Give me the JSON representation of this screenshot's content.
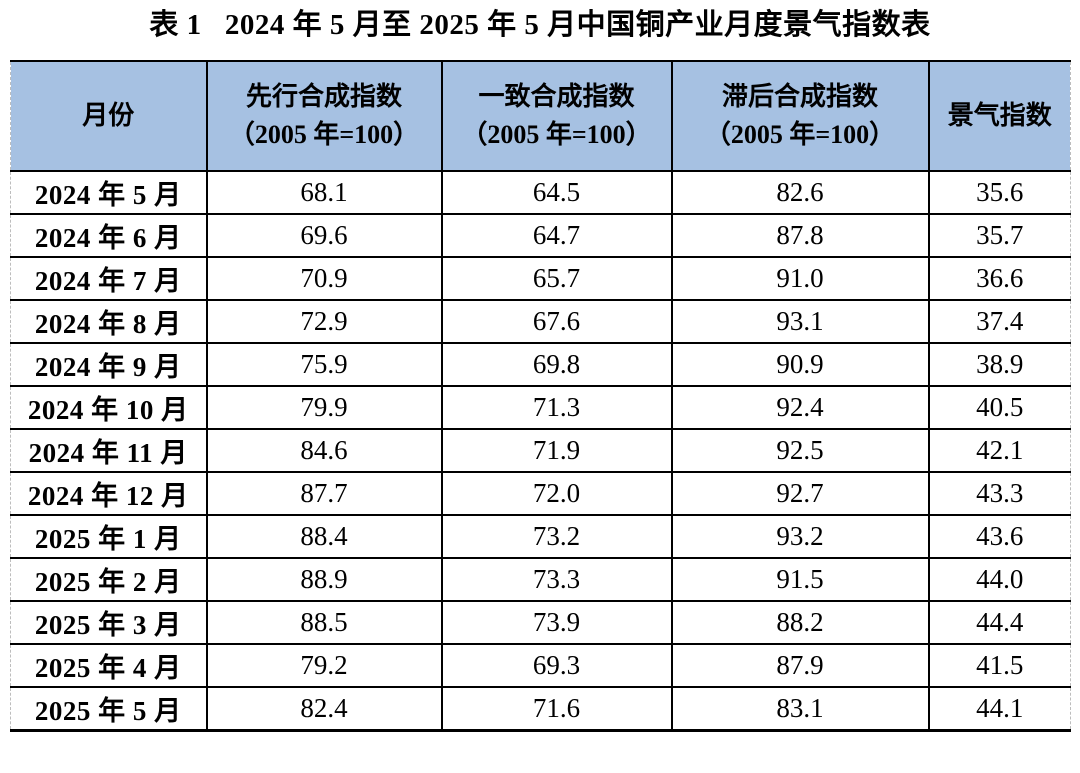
{
  "title": "表 1   2024 年 5 月至 2025 年 5 月中国铜产业月度景气指数表",
  "table": {
    "header_bg": "#a6c1e2",
    "columns": [
      {
        "label": "月份",
        "sublabel": ""
      },
      {
        "label": "先行合成指数",
        "sublabel": "（2005 年=100）"
      },
      {
        "label": "一致合成指数",
        "sublabel": "（2005 年=100）"
      },
      {
        "label": "滞后合成指数",
        "sublabel": "（2005 年=100）"
      },
      {
        "label": "景气指数",
        "sublabel": ""
      }
    ],
    "rows": [
      {
        "month": "2024 年 5 月",
        "leading": "68.1",
        "coincident": "64.5",
        "lagging": "82.6",
        "prosperity": "35.6"
      },
      {
        "month": "2024 年 6 月",
        "leading": "69.6",
        "coincident": "64.7",
        "lagging": "87.8",
        "prosperity": "35.7"
      },
      {
        "month": "2024 年 7 月",
        "leading": "70.9",
        "coincident": "65.7",
        "lagging": "91.0",
        "prosperity": "36.6"
      },
      {
        "month": "2024 年 8 月",
        "leading": "72.9",
        "coincident": "67.6",
        "lagging": "93.1",
        "prosperity": "37.4"
      },
      {
        "month": "2024 年 9 月",
        "leading": "75.9",
        "coincident": "69.8",
        "lagging": "90.9",
        "prosperity": "38.9"
      },
      {
        "month": "2024 年 10 月",
        "leading": "79.9",
        "coincident": "71.3",
        "lagging": "92.4",
        "prosperity": "40.5"
      },
      {
        "month": "2024 年 11 月",
        "leading": "84.6",
        "coincident": "71.9",
        "lagging": "92.5",
        "prosperity": "42.1"
      },
      {
        "month": "2024 年 12 月",
        "leading": "87.7",
        "coincident": "72.0",
        "lagging": "92.7",
        "prosperity": "43.3"
      },
      {
        "month": "2025 年 1 月",
        "leading": "88.4",
        "coincident": "73.2",
        "lagging": "93.2",
        "prosperity": "43.6"
      },
      {
        "month": "2025 年 2 月",
        "leading": "88.9",
        "coincident": "73.3",
        "lagging": "91.5",
        "prosperity": "44.0"
      },
      {
        "month": "2025 年 3 月",
        "leading": "88.5",
        "coincident": "73.9",
        "lagging": "88.2",
        "prosperity": "44.4"
      },
      {
        "month": "2025 年 4 月",
        "leading": "79.2",
        "coincident": "69.3",
        "lagging": "87.9",
        "prosperity": "41.5"
      },
      {
        "month": "2025 年 5 月",
        "leading": "82.4",
        "coincident": "71.6",
        "lagging": "83.1",
        "prosperity": "44.1"
      }
    ]
  }
}
